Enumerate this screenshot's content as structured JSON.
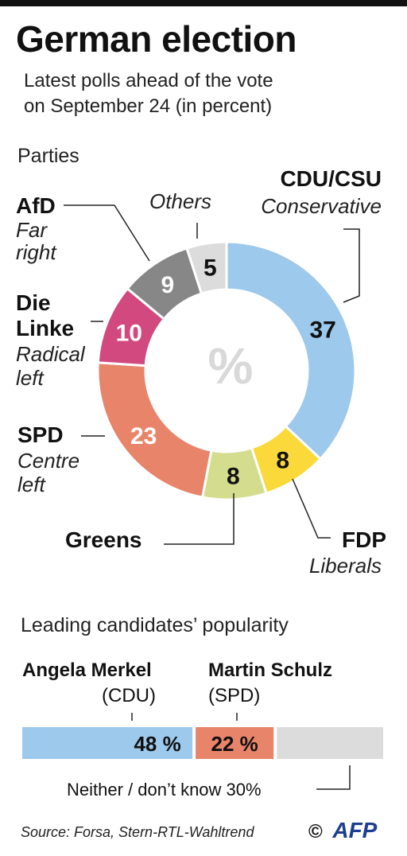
{
  "title": "German election",
  "subtitle_line1": "Latest polls ahead of the vote",
  "subtitle_line2": "on September 24  (in percent)",
  "parties_heading": "Parties",
  "center_symbol": "%",
  "colors": {
    "cdu": "#9cc9ec",
    "fdp": "#fbd93b",
    "greens": "#d4dd8d",
    "spd": "#e8846a",
    "linke": "#d2497f",
    "afd": "#878787",
    "others": "#dcdcdc"
  },
  "labels": {
    "cdu_name": "CDU/CSU",
    "cdu_desc": "Conservative",
    "fdp_name": "FDP",
    "fdp_desc": "Liberals",
    "greens_name": "Greens",
    "spd_name": "SPD",
    "spd_desc1": "Centre",
    "spd_desc2": "left",
    "linke_name1": "Die",
    "linke_name2": "Linke",
    "linke_desc1": "Radical",
    "linke_desc2": "left",
    "afd_name": "AfD",
    "afd_desc1": "Far",
    "afd_desc2": "right",
    "others_name": "Others"
  },
  "candidates_heading": "Leading candidates’ popularity",
  "candidates": {
    "merkel_name": "Angela Merkel",
    "merkel_party": "(CDU)",
    "schulz_name": "Martin Schulz",
    "schulz_party": "(SPD)",
    "neither_label": "Neither / don’t know  30%"
  },
  "source": "Source: Forsa, Stern-RTL-Wahltrend",
  "copyright": "©",
  "logo": "AFP",
  "chart_data": [
    {
      "type": "pie",
      "title": "Parties",
      "series": [
        {
          "name": "CDU/CSU",
          "value": 37,
          "label": "37"
        },
        {
          "name": "FDP",
          "value": 8,
          "label": "8"
        },
        {
          "name": "Greens",
          "value": 8,
          "label": "8"
        },
        {
          "name": "SPD",
          "value": 23,
          "label": "23"
        },
        {
          "name": "Die Linke",
          "value": 10,
          "label": "10"
        },
        {
          "name": "AfD",
          "value": 9,
          "label": "9"
        },
        {
          "name": "Others",
          "value": 5,
          "label": "5"
        }
      ]
    },
    {
      "type": "bar",
      "title": "Leading candidates’ popularity",
      "categories": [
        "Angela Merkel (CDU)",
        "Martin Schulz (SPD)",
        "Neither / don’t know"
      ],
      "values": [
        48,
        22,
        30
      ],
      "value_labels": [
        "48 %",
        "22 %",
        ""
      ]
    }
  ]
}
